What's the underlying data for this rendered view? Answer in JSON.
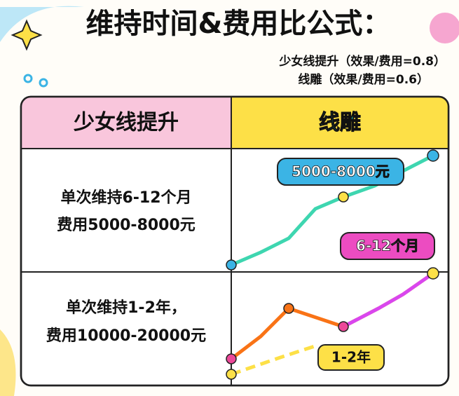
{
  "header": {
    "title": "维持时间&费用比公式：",
    "notes": [
      "少女线提升（效果/费用=0.8）",
      "线雕（效果/费用=0.6）"
    ]
  },
  "table": {
    "columns": [
      "少女线提升",
      "线雕"
    ],
    "rows": [
      {
        "text": [
          "单次维持6-12个月",
          "费用5000-8000元"
        ],
        "tags": [
          "5000-8000元",
          "6-12个月"
        ]
      },
      {
        "text": [
          "单次维持1-2年，",
          "费用10000-20000元"
        ],
        "tags": [
          "1-2年"
        ]
      }
    ]
  }
}
